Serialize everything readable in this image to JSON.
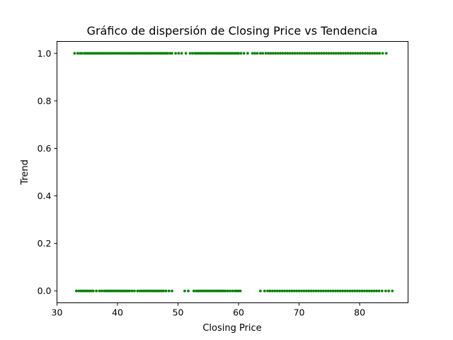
{
  "chart_data": {
    "type": "scatter",
    "title": "Gráfico de dispersión de Closing Price vs Tendencia",
    "xlabel": "Closing Price",
    "ylabel": "Trend",
    "xlim": [
      30,
      88
    ],
    "ylim": [
      -0.05,
      1.05
    ],
    "xticks": [
      30,
      40,
      50,
      60,
      70,
      80
    ],
    "yticks": [
      0.0,
      0.2,
      0.4,
      0.6,
      0.8,
      1.0
    ],
    "xtick_labels": [
      "30",
      "40",
      "50",
      "60",
      "70",
      "80"
    ],
    "ytick_labels": [
      "0.0",
      "0.2",
      "0.4",
      "0.6",
      "0.8",
      "1.0"
    ],
    "grid": false,
    "legend": "none",
    "marker_color": "#008000",
    "series": [
      {
        "y": 1,
        "x": [
          32.9,
          33.4,
          33.8,
          34.1,
          34.5,
          34.8,
          35.1,
          35.4,
          35.7,
          36.0,
          36.3,
          36.6,
          36.9,
          37.2,
          37.5,
          37.8,
          38.1,
          38.4,
          38.7,
          39.0,
          39.3,
          39.6,
          39.9,
          40.2,
          40.5,
          40.8,
          41.1,
          41.4,
          41.7,
          42.0,
          42.3,
          42.6,
          42.9,
          43.2,
          43.5,
          43.8,
          44.1,
          44.4,
          44.7,
          45.0,
          45.3,
          45.6,
          45.9,
          46.2,
          46.5,
          46.8,
          47.1,
          47.4,
          47.7,
          48.0,
          48.3,
          48.7,
          49.0,
          49.6,
          50.1,
          50.6,
          51.3,
          52.0,
          52.4,
          52.8,
          53.1,
          53.4,
          53.7,
          54.0,
          54.3,
          54.6,
          54.9,
          55.2,
          55.5,
          55.8,
          56.1,
          56.4,
          56.7,
          57.0,
          57.3,
          57.6,
          57.9,
          58.2,
          58.5,
          58.8,
          59.1,
          59.4,
          59.7,
          60.0,
          60.4,
          60.9,
          61.5,
          62.3,
          62.7,
          63.1,
          63.6,
          64.0,
          64.5,
          64.9,
          65.3,
          65.7,
          66.1,
          66.5,
          66.9,
          67.3,
          67.7,
          68.1,
          68.5,
          68.9,
          69.3,
          69.7,
          70.1,
          70.5,
          70.9,
          71.3,
          71.7,
          72.1,
          72.5,
          72.9,
          73.3,
          73.7,
          74.1,
          74.5,
          74.9,
          75.3,
          75.7,
          76.1,
          76.5,
          76.9,
          77.3,
          77.7,
          78.1,
          78.5,
          78.9,
          79.3,
          79.7,
          80.1,
          80.5,
          80.9,
          81.3,
          81.7,
          82.1,
          82.5,
          82.9,
          83.3,
          83.8,
          84.4
        ]
      },
      {
        "y": 0,
        "x": [
          33.2,
          33.6,
          33.9,
          34.2,
          34.5,
          34.8,
          35.1,
          35.4,
          35.7,
          36.0,
          36.5,
          37.0,
          37.4,
          37.8,
          38.1,
          38.4,
          38.7,
          39.0,
          39.3,
          39.6,
          39.9,
          40.2,
          40.5,
          40.8,
          41.1,
          41.4,
          41.7,
          42.0,
          42.4,
          42.8,
          43.3,
          43.7,
          44.0,
          44.3,
          44.6,
          44.9,
          45.2,
          45.5,
          45.8,
          46.1,
          46.4,
          46.7,
          47.0,
          47.3,
          47.6,
          48.0,
          48.5,
          49.0,
          51.1,
          51.7,
          52.6,
          53.0,
          53.3,
          53.6,
          53.9,
          54.2,
          54.5,
          54.8,
          55.1,
          55.4,
          55.7,
          56.0,
          56.3,
          56.6,
          56.9,
          57.2,
          57.5,
          57.8,
          58.2,
          58.6,
          59.0,
          59.4,
          59.7,
          60.0,
          60.3,
          63.6,
          64.3,
          64.8,
          65.2,
          65.6,
          66.0,
          66.4,
          66.8,
          67.2,
          67.6,
          68.0,
          68.4,
          68.8,
          69.2,
          69.6,
          70.0,
          70.4,
          70.8,
          71.2,
          71.6,
          72.0,
          72.4,
          72.8,
          73.2,
          73.6,
          74.0,
          74.4,
          74.8,
          75.2,
          75.6,
          76.0,
          76.4,
          76.8,
          77.2,
          77.6,
          78.0,
          78.4,
          78.8,
          79.2,
          79.6,
          80.0,
          80.4,
          80.8,
          81.2,
          81.6,
          82.0,
          82.4,
          82.8,
          83.2,
          83.7,
          84.3,
          84.8,
          85.4
        ]
      }
    ]
  }
}
